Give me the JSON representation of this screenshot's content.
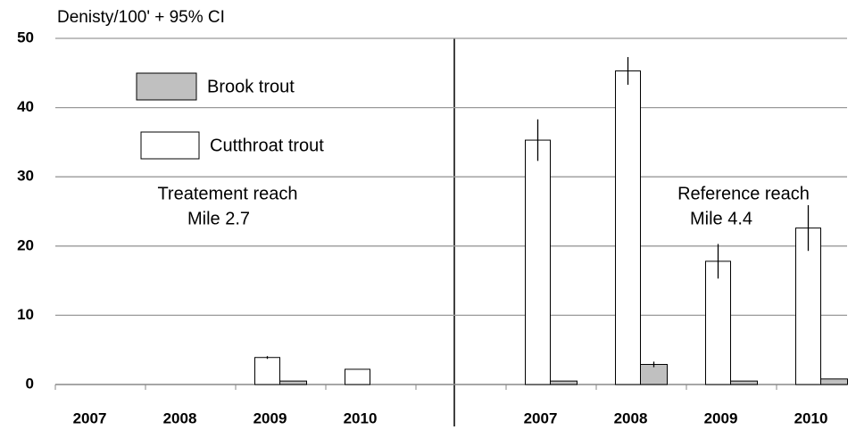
{
  "chart_data": {
    "type": "bar",
    "y_label": "Denisty/100' + 95% CI",
    "categories": [
      "2007",
      "2008",
      "2009",
      "2010",
      null,
      "2007",
      "2008",
      "2009",
      "2010"
    ],
    "series": [
      {
        "name": "Cutthroat trout",
        "color": "#ffffff",
        "values": [
          null,
          null,
          3.9,
          2.2,
          null,
          35.3,
          45.3,
          17.8,
          22.6
        ],
        "errors": [
          null,
          null,
          0.2,
          null,
          null,
          3.0,
          2.0,
          2.5,
          3.3
        ]
      },
      {
        "name": "Brook trout",
        "color": "#c0c0c0",
        "values": [
          null,
          null,
          0.5,
          null,
          null,
          0.5,
          2.9,
          0.5,
          0.8
        ],
        "errors": [
          null,
          null,
          null,
          null,
          null,
          null,
          0.4,
          null,
          null
        ]
      }
    ],
    "ylim": [
      0,
      50
    ],
    "yticks": [
      0,
      10,
      20,
      30,
      40,
      50
    ],
    "grid": true,
    "annotations": [
      "Treatement reach",
      "Mile 2.7",
      "Reference  reach",
      "Mile 4.4"
    ]
  }
}
